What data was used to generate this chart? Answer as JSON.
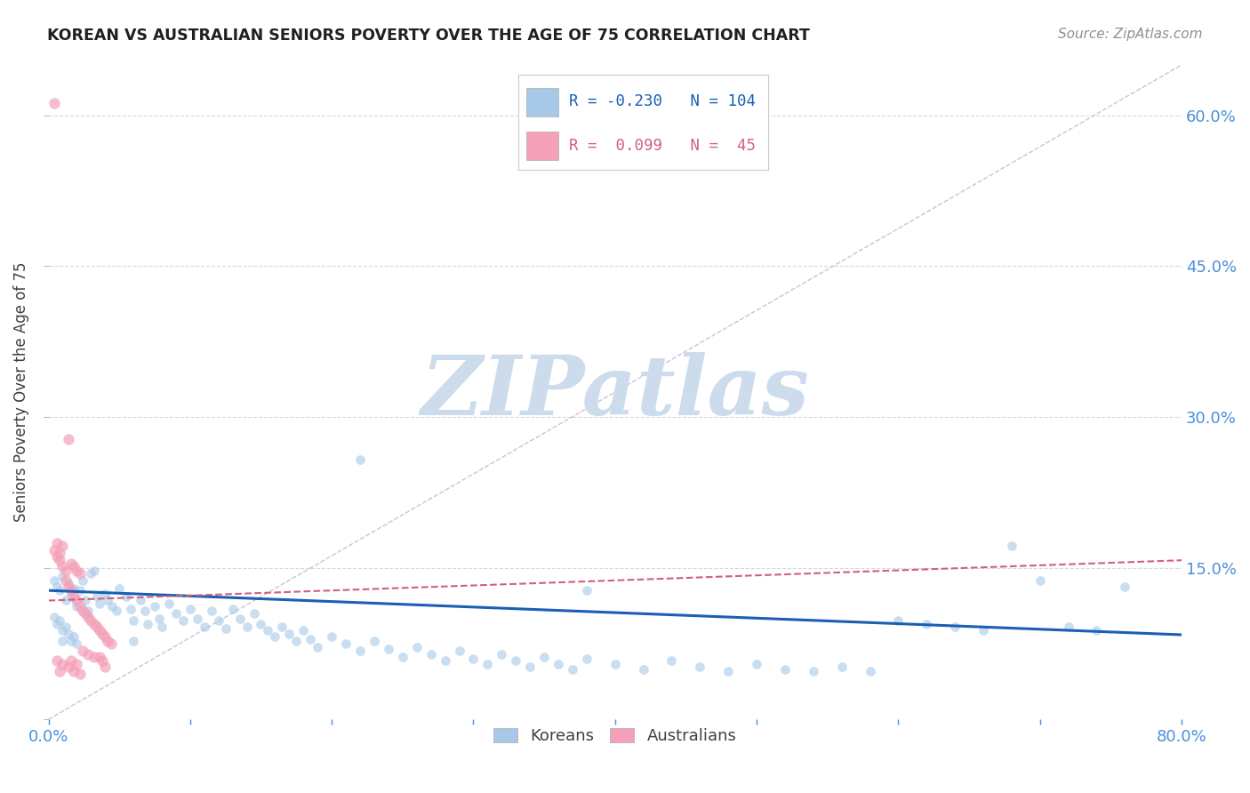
{
  "title": "KOREAN VS AUSTRALIAN SENIORS POVERTY OVER THE AGE OF 75 CORRELATION CHART",
  "source": "Source: ZipAtlas.com",
  "ylabel": "Seniors Poverty Over the Age of 75",
  "xlim": [
    0.0,
    0.8
  ],
  "ylim": [
    0.0,
    0.65
  ],
  "yticks": [
    0.0,
    0.15,
    0.3,
    0.45,
    0.6
  ],
  "korean_R": -0.23,
  "korean_N": 104,
  "australian_R": 0.099,
  "australian_N": 45,
  "watermark": "ZIPatlas",
  "watermark_color": "#ccdcec",
  "korean_color": "#a8c8e8",
  "korean_line_color": "#1a5fb4",
  "australian_color": "#f4a0b8",
  "australian_line_color": "#d06080",
  "diagonal_color": "#d0c0d0",
  "background_color": "#ffffff",
  "grid_color": "#d8d8d8",
  "title_color": "#202020",
  "source_color": "#909090",
  "axis_label_color": "#404040",
  "tick_color": "#4a90d9",
  "korean_scatter": [
    [
      0.004,
      0.138
    ],
    [
      0.006,
      0.132
    ],
    [
      0.008,
      0.128
    ],
    [
      0.01,
      0.142
    ],
    [
      0.012,
      0.118
    ],
    [
      0.014,
      0.135
    ],
    [
      0.016,
      0.125
    ],
    [
      0.018,
      0.13
    ],
    [
      0.02,
      0.112
    ],
    [
      0.022,
      0.128
    ],
    [
      0.024,
      0.138
    ],
    [
      0.026,
      0.118
    ],
    [
      0.028,
      0.108
    ],
    [
      0.03,
      0.145
    ],
    [
      0.032,
      0.148
    ],
    [
      0.034,
      0.122
    ],
    [
      0.036,
      0.115
    ],
    [
      0.004,
      0.102
    ],
    [
      0.006,
      0.095
    ],
    [
      0.008,
      0.098
    ],
    [
      0.01,
      0.088
    ],
    [
      0.012,
      0.092
    ],
    [
      0.014,
      0.085
    ],
    [
      0.016,
      0.078
    ],
    [
      0.018,
      0.082
    ],
    [
      0.02,
      0.075
    ],
    [
      0.04,
      0.125
    ],
    [
      0.042,
      0.118
    ],
    [
      0.045,
      0.112
    ],
    [
      0.048,
      0.108
    ],
    [
      0.05,
      0.13
    ],
    [
      0.055,
      0.122
    ],
    [
      0.058,
      0.11
    ],
    [
      0.06,
      0.098
    ],
    [
      0.065,
      0.118
    ],
    [
      0.068,
      0.108
    ],
    [
      0.07,
      0.095
    ],
    [
      0.075,
      0.112
    ],
    [
      0.078,
      0.1
    ],
    [
      0.08,
      0.092
    ],
    [
      0.085,
      0.115
    ],
    [
      0.09,
      0.105
    ],
    [
      0.095,
      0.098
    ],
    [
      0.1,
      0.11
    ],
    [
      0.105,
      0.1
    ],
    [
      0.11,
      0.092
    ],
    [
      0.115,
      0.108
    ],
    [
      0.12,
      0.098
    ],
    [
      0.125,
      0.09
    ],
    [
      0.13,
      0.11
    ],
    [
      0.135,
      0.1
    ],
    [
      0.14,
      0.092
    ],
    [
      0.145,
      0.105
    ],
    [
      0.15,
      0.095
    ],
    [
      0.155,
      0.088
    ],
    [
      0.16,
      0.082
    ],
    [
      0.165,
      0.092
    ],
    [
      0.17,
      0.085
    ],
    [
      0.175,
      0.078
    ],
    [
      0.18,
      0.088
    ],
    [
      0.185,
      0.08
    ],
    [
      0.19,
      0.072
    ],
    [
      0.2,
      0.082
    ],
    [
      0.21,
      0.075
    ],
    [
      0.22,
      0.068
    ],
    [
      0.23,
      0.078
    ],
    [
      0.24,
      0.07
    ],
    [
      0.25,
      0.062
    ],
    [
      0.26,
      0.072
    ],
    [
      0.27,
      0.065
    ],
    [
      0.28,
      0.058
    ],
    [
      0.29,
      0.068
    ],
    [
      0.3,
      0.06
    ],
    [
      0.31,
      0.055
    ],
    [
      0.32,
      0.065
    ],
    [
      0.33,
      0.058
    ],
    [
      0.34,
      0.052
    ],
    [
      0.35,
      0.062
    ],
    [
      0.36,
      0.055
    ],
    [
      0.37,
      0.05
    ],
    [
      0.38,
      0.06
    ],
    [
      0.4,
      0.055
    ],
    [
      0.42,
      0.05
    ],
    [
      0.44,
      0.058
    ],
    [
      0.46,
      0.052
    ],
    [
      0.48,
      0.048
    ],
    [
      0.5,
      0.055
    ],
    [
      0.52,
      0.05
    ],
    [
      0.54,
      0.048
    ],
    [
      0.56,
      0.052
    ],
    [
      0.58,
      0.048
    ],
    [
      0.6,
      0.098
    ],
    [
      0.62,
      0.095
    ],
    [
      0.64,
      0.092
    ],
    [
      0.66,
      0.088
    ],
    [
      0.68,
      0.172
    ],
    [
      0.7,
      0.138
    ],
    [
      0.72,
      0.092
    ],
    [
      0.74,
      0.088
    ],
    [
      0.76,
      0.132
    ],
    [
      0.22,
      0.258
    ],
    [
      0.38,
      0.128
    ],
    [
      0.01,
      0.078
    ],
    [
      0.06,
      0.078
    ]
  ],
  "australian_scatter": [
    [
      0.004,
      0.612
    ],
    [
      0.006,
      0.162
    ],
    [
      0.008,
      0.158
    ],
    [
      0.01,
      0.152
    ],
    [
      0.012,
      0.148
    ],
    [
      0.014,
      0.278
    ],
    [
      0.016,
      0.155
    ],
    [
      0.018,
      0.152
    ],
    [
      0.02,
      0.148
    ],
    [
      0.022,
      0.145
    ],
    [
      0.004,
      0.168
    ],
    [
      0.006,
      0.175
    ],
    [
      0.008,
      0.165
    ],
    [
      0.01,
      0.172
    ],
    [
      0.012,
      0.138
    ],
    [
      0.014,
      0.132
    ],
    [
      0.016,
      0.128
    ],
    [
      0.018,
      0.122
    ],
    [
      0.02,
      0.118
    ],
    [
      0.022,
      0.112
    ],
    [
      0.024,
      0.108
    ],
    [
      0.026,
      0.105
    ],
    [
      0.028,
      0.102
    ],
    [
      0.03,
      0.098
    ],
    [
      0.032,
      0.095
    ],
    [
      0.034,
      0.092
    ],
    [
      0.036,
      0.088
    ],
    [
      0.038,
      0.085
    ],
    [
      0.04,
      0.082
    ],
    [
      0.042,
      0.078
    ],
    [
      0.044,
      0.075
    ],
    [
      0.006,
      0.058
    ],
    [
      0.01,
      0.055
    ],
    [
      0.014,
      0.052
    ],
    [
      0.018,
      0.048
    ],
    [
      0.022,
      0.045
    ],
    [
      0.008,
      0.048
    ],
    [
      0.016,
      0.058
    ],
    [
      0.02,
      0.055
    ],
    [
      0.04,
      0.052
    ],
    [
      0.024,
      0.068
    ],
    [
      0.028,
      0.065
    ],
    [
      0.032,
      0.062
    ],
    [
      0.038,
      0.058
    ],
    [
      0.036,
      0.062
    ]
  ],
  "korean_line": {
    "x0": 0.0,
    "x1": 0.8,
    "y0": 0.128,
    "y1": 0.084
  },
  "australian_line": {
    "x0": 0.0,
    "x1": 0.8,
    "y0": 0.118,
    "y1": 0.158
  },
  "diagonal_line": {
    "x0": 0.0,
    "x1": 0.8,
    "y0": 0.0,
    "y1": 0.65
  }
}
